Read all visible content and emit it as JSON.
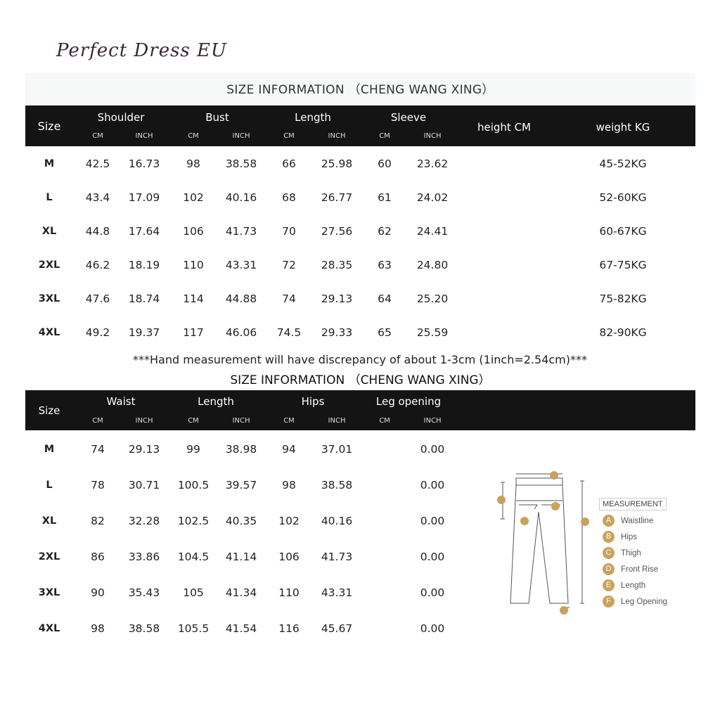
{
  "top": {
    "title": "SIZE INFORMATION （CHENG WANG XING）",
    "headers": {
      "size": "Size",
      "shoulder": "Shoulder",
      "bust": "Bust",
      "length": "Length",
      "sleeve": "Sleeve",
      "height": "height  CM",
      "weight": "weight  KG",
      "cm": "CM",
      "inch": "INCH"
    },
    "rows": [
      [
        "M",
        "42.5",
        "16.73",
        "98",
        "38.58",
        "66",
        "25.98",
        "60",
        "23.62",
        "",
        "45-52KG"
      ],
      [
        "L",
        "43.4",
        "17.09",
        "102",
        "40.16",
        "68",
        "26.77",
        "61",
        "24.02",
        "",
        "52-60KG"
      ],
      [
        "XL",
        "44.8",
        "17.64",
        "106",
        "41.73",
        "70",
        "27.56",
        "62",
        "24.41",
        "",
        "60-67KG"
      ],
      [
        "2XL",
        "46.2",
        "18.19",
        "110",
        "43.31",
        "72",
        "28.35",
        "63",
        "24.80",
        "",
        "67-75KG"
      ],
      [
        "3XL",
        "47.6",
        "18.74",
        "114",
        "44.88",
        "74",
        "29.13",
        "64",
        "25.20",
        "",
        "75-82KG"
      ],
      [
        "4XL",
        "49.2",
        "19.37",
        "117",
        "46.06",
        "74.5",
        "29.33",
        "65",
        "25.59",
        "",
        "82-90KG"
      ]
    ]
  },
  "watermark": "Perfect Dress EU",
  "note": "***Hand measurement will have discrepancy of about 1-3cm (1inch=2.54cm)***",
  "bottom": {
    "title": "SIZE INFORMATION （CHENG WANG XING）",
    "headers": {
      "size": "Size",
      "waist": "Waist",
      "length": "Length",
      "hips": "Hips",
      "leg": "Leg opening",
      "cm": "CM",
      "inch": "INCH"
    },
    "rows": [
      [
        "M",
        "74",
        "29.13",
        "99",
        "38.98",
        "94",
        "37.01",
        "",
        "0.00"
      ],
      [
        "L",
        "78",
        "30.71",
        "100.5",
        "39.57",
        "98",
        "38.58",
        "",
        "0.00"
      ],
      [
        "XL",
        "82",
        "32.28",
        "102.5",
        "40.35",
        "102",
        "40.16",
        "",
        "0.00"
      ],
      [
        "2XL",
        "86",
        "33.86",
        "104.5",
        "41.14",
        "106",
        "41.73",
        "",
        "0.00"
      ],
      [
        "3XL",
        "90",
        "35.43",
        "105",
        "41.34",
        "110",
        "43.31",
        "",
        "0.00"
      ],
      [
        "4XL",
        "98",
        "38.58",
        "105.5",
        "41.54",
        "116",
        "45.67",
        "",
        "0.00"
      ]
    ]
  },
  "diagram": {
    "title": "MEASUREMENT",
    "items": [
      {
        "k": "A",
        "label": "Waistline"
      },
      {
        "k": "B",
        "label": "Hips"
      },
      {
        "k": "C",
        "label": "Thigh"
      },
      {
        "k": "D",
        "label": "Front Rise"
      },
      {
        "k": "E",
        "label": "Length"
      },
      {
        "k": "F",
        "label": "Leg Opening"
      }
    ]
  },
  "colors": {
    "header": "#141414",
    "accent": "#c9a25e"
  }
}
